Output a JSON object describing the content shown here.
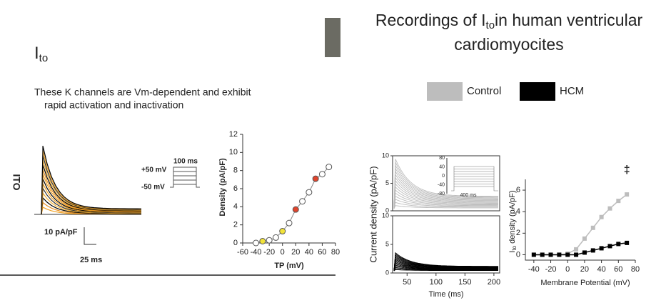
{
  "left": {
    "title": "I",
    "title_sub": "to",
    "text_line1": "These K channels are Vm-dependent and exhibit",
    "text_line2": "rapid activation and inactivation",
    "side_label": "ITO",
    "protocol_high": "+50 mV",
    "protocol_low": "-50 mV",
    "protocol_time": "100 ms",
    "scale_current": "10 pA/pF",
    "scale_time": "25 ms",
    "chart": {
      "type": "scatter",
      "ylabel": "Density (pA/pF)",
      "xlabel": "TP (mV)",
      "x": [
        -40,
        -30,
        -20,
        -10,
        0,
        10,
        20,
        30,
        40,
        50,
        60,
        70
      ],
      "values": [
        0,
        0.2,
        0.3,
        0.6,
        1.3,
        2.2,
        3.7,
        4.6,
        5.6,
        7.1,
        7.6,
        8.4
      ],
      "colors": [
        "#fff",
        "#f2e33a",
        "#fff",
        "#fff",
        "#f2e33a",
        "#fff",
        "#e0452d",
        "#fff",
        "#fff",
        "#e0452d",
        "#fff",
        "#fff"
      ],
      "xlim": [
        -60,
        80
      ],
      "ylim": [
        0,
        12
      ],
      "xticks": [
        -60,
        -40,
        -20,
        0,
        20,
        40,
        60,
        80
      ],
      "yticks": [
        0,
        2,
        4,
        6,
        8,
        10,
        12
      ]
    }
  },
  "right": {
    "title_pre": "Recordings of I",
    "title_sub": "to",
    "title_post": "in human ventricular",
    "title_line2": "cardiomyocites",
    "traces": {
      "ylabel": "Current  density (pA/pF)",
      "xlabel": "Time (ms)",
      "xlim": [
        25,
        210
      ],
      "xticks": [
        50,
        100,
        150,
        200
      ],
      "ylim": [
        0,
        10
      ],
      "top_yticks": [
        0,
        5,
        10
      ],
      "bottom_yticks": [
        0,
        5,
        10
      ],
      "inset_ticks": [
        80,
        40,
        0,
        -40,
        -80
      ],
      "inset_time": "400 ms"
    },
    "chart": {
      "type": "line",
      "ylabel_pre": "I",
      "ylabel_sub": "to",
      "ylabel_post": " density (pA/pF)",
      "xlabel": "Membrane Potential (mV)",
      "annotation": "‡",
      "x": [
        -40,
        -30,
        -20,
        -10,
        0,
        10,
        20,
        30,
        40,
        50,
        60,
        70
      ],
      "series": [
        {
          "name": "Control",
          "color": "#bdbdbd",
          "values": [
            0,
            0,
            0,
            0,
            0.1,
            0.5,
            1.5,
            2.5,
            3.5,
            4.3,
            5.0,
            5.6
          ]
        },
        {
          "name": "HCM",
          "color": "#000000",
          "values": [
            0,
            0,
            0,
            0,
            0,
            0,
            0.2,
            0.4,
            0.6,
            0.8,
            1.0,
            1.1
          ]
        }
      ],
      "xlim": [
        -50,
        80
      ],
      "ylim": [
        -0.5,
        7
      ],
      "xticks": [
        -40,
        -20,
        0,
        20,
        40,
        60,
        80
      ],
      "yticks": [
        0,
        2,
        4,
        6
      ]
    }
  }
}
